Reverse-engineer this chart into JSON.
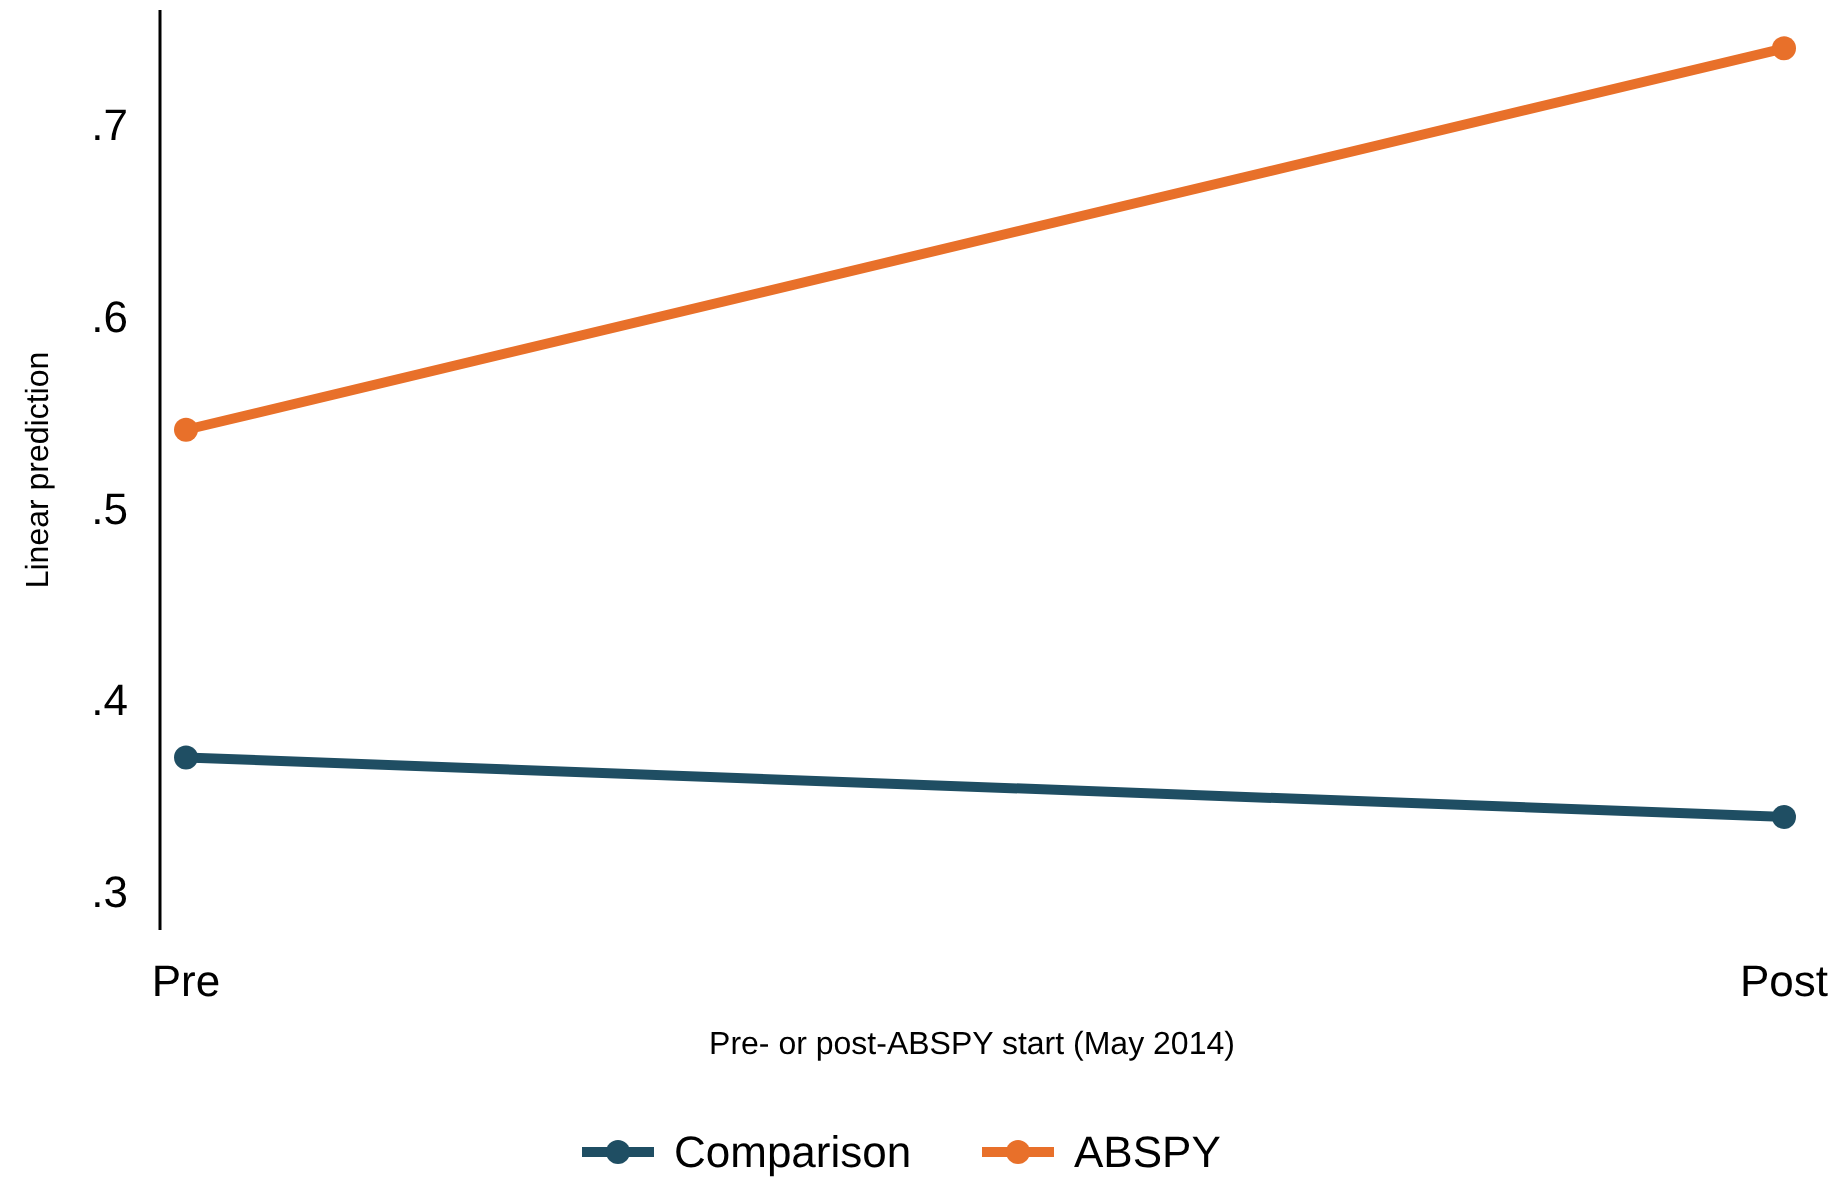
{
  "chart_data": {
    "type": "line",
    "xlabel": "Pre- or post-ABSPY start (May 2014)",
    "ylabel": "Linear prediction",
    "categories": [
      "Pre",
      "Post"
    ],
    "series": [
      {
        "name": "Comparison",
        "color": "#1f4e63",
        "values": [
          0.37,
          0.339
        ]
      },
      {
        "name": "ABSPY",
        "color": "#e8702a",
        "values": [
          0.541,
          0.74
        ]
      }
    ],
    "ylim": [
      0.28,
      0.76
    ],
    "yticks": [
      {
        "value": 0.3,
        "label": ".3"
      },
      {
        "value": 0.4,
        "label": ".4"
      },
      {
        "value": 0.5,
        "label": ".5"
      },
      {
        "value": 0.6,
        "label": ".6"
      },
      {
        "value": 0.7,
        "label": ".7"
      }
    ],
    "grid": false,
    "legend": "bottom",
    "marker": "circle",
    "line_style": "solid"
  }
}
